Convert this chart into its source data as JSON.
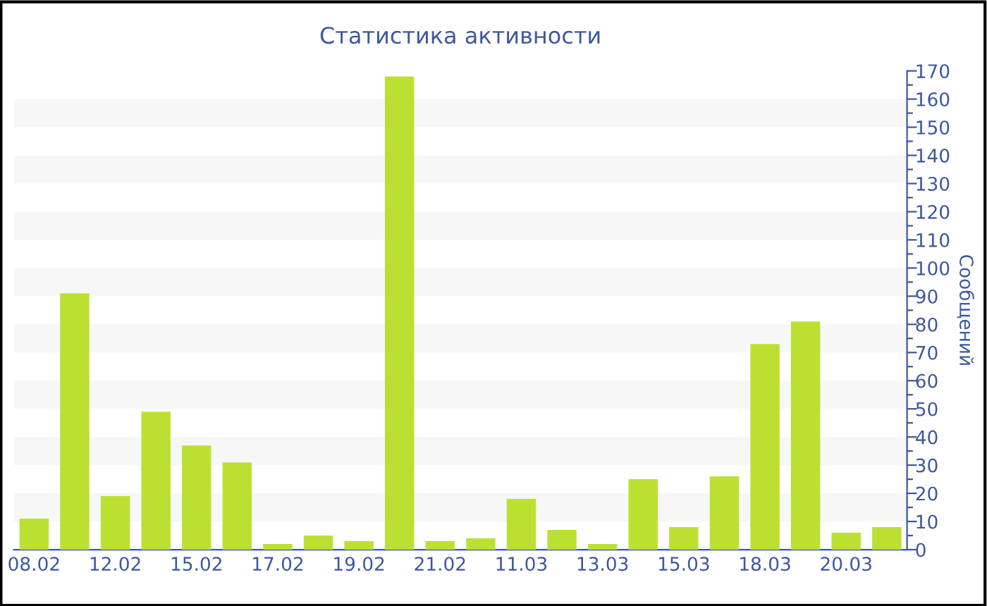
{
  "chart_data": {
    "type": "bar",
    "title": "Статистика активности",
    "ylabel": "Сообщений",
    "categories": [
      "08.02",
      null,
      "12.02",
      null,
      "15.02",
      null,
      "17.02",
      null,
      "19.02",
      null,
      "21.02",
      null,
      "11.03",
      null,
      "13.03",
      null,
      "15.03",
      null,
      "18.03",
      null,
      "20.03",
      null
    ],
    "values": [
      11,
      91,
      19,
      49,
      37,
      31,
      2,
      5,
      3,
      168,
      3,
      4,
      18,
      7,
      2,
      25,
      8,
      26,
      73,
      81,
      6,
      8
    ],
    "color": "#bce032",
    "ylim": [
      0,
      170
    ],
    "yticks": [
      0,
      {
        "value": 5,
        "label": null
      },
      10,
      {
        "value": 15,
        "label": null
      },
      20,
      {
        "value": 25,
        "label": null
      },
      30,
      {
        "value": 35,
        "label": null
      },
      40,
      {
        "value": 45,
        "label": null
      },
      50,
      {
        "value": 55,
        "label": null
      },
      60,
      {
        "value": 65,
        "label": null
      },
      70,
      {
        "value": 75,
        "label": null
      },
      80,
      {
        "value": 85,
        "label": null
      },
      90,
      {
        "value": 95,
        "label": null
      },
      100,
      {
        "value": 105,
        "label": null
      },
      110,
      {
        "value": 115,
        "label": null
      },
      120,
      {
        "value": 125,
        "label": null
      },
      130,
      {
        "value": 135,
        "label": null
      },
      140,
      {
        "value": 145,
        "label": null
      },
      150,
      {
        "value": 155,
        "label": null
      },
      160,
      {
        "value": 165,
        "label": null
      },
      170
    ],
    "bands": [
      {
        "axis": "y",
        "from": 10,
        "to": 20,
        "color": "#f7f7f7"
      },
      {
        "axis": "y",
        "from": 30,
        "to": 40,
        "color": "#f7f7f7"
      },
      {
        "axis": "y",
        "from": 50,
        "to": 60,
        "color": "#f7f7f7"
      },
      {
        "axis": "y",
        "from": 70,
        "to": 80,
        "color": "#f7f7f7"
      },
      {
        "axis": "y",
        "from": 90,
        "to": 100,
        "color": "#f7f7f7"
      },
      {
        "axis": "y",
        "from": 110,
        "to": 120,
        "color": "#f7f7f7"
      },
      {
        "axis": "y",
        "from": 130,
        "to": 140,
        "color": "#f7f7f7"
      },
      {
        "axis": "y",
        "from": 150,
        "to": 160,
        "color": "#f7f7f7"
      }
    ],
    "grid": false,
    "legend": false
  }
}
